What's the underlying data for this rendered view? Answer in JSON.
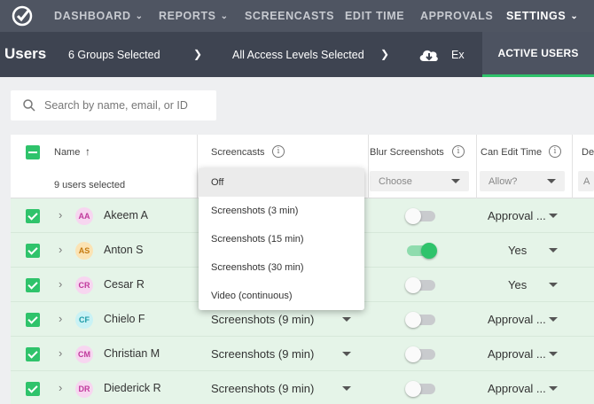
{
  "nav": {
    "items": [
      {
        "label": "DASHBOARD",
        "chevron": true
      },
      {
        "label": "REPORTS",
        "chevron": true
      },
      {
        "label": "SCREENCASTS",
        "chevron": false
      },
      {
        "label": "EDIT TIME",
        "chevron": false
      },
      {
        "label": "APPROVALS",
        "chevron": false
      },
      {
        "label": "SETTINGS",
        "chevron": true
      }
    ]
  },
  "subbar": {
    "title": "Users",
    "groups": "6 Groups Selected",
    "access": "All Access Levels Selected",
    "export": "Ex",
    "active_users": "ACTIVE USERS"
  },
  "search": {
    "placeholder": "Search by name, email, or ID"
  },
  "table": {
    "headers": {
      "name": "Name",
      "screencasts": "Screencasts",
      "blur": "Blur Screenshots",
      "edit": "Can Edit Time",
      "next": "De"
    },
    "users_selected": "9 users selected",
    "filters": {
      "blur": "Choose",
      "edit": "Allow?",
      "next": "A"
    },
    "rows": [
      {
        "initials": "AA",
        "name": "Akeem A",
        "screencasts": "",
        "blur": false,
        "edit": "Approval ...",
        "avatar_bg": "#f7d6f0",
        "avatar_fg": "#c0399c"
      },
      {
        "initials": "AS",
        "name": "Anton S",
        "screencasts": "",
        "blur": true,
        "edit": "Yes",
        "avatar_bg": "#fbe3b4",
        "avatar_fg": "#c47a10"
      },
      {
        "initials": "CR",
        "name": "Cesar R",
        "screencasts": "",
        "blur": false,
        "edit": "Yes",
        "avatar_bg": "#f7d6f0",
        "avatar_fg": "#c0399c"
      },
      {
        "initials": "CF",
        "name": "Chielo F",
        "screencasts": "Screenshots (9 min)",
        "blur": false,
        "edit": "Approval ...",
        "avatar_bg": "#c9f2f5",
        "avatar_fg": "#1c9aa6"
      },
      {
        "initials": "CM",
        "name": "Christian M",
        "screencasts": "Screenshots (9 min)",
        "blur": false,
        "edit": "Approval ...",
        "avatar_bg": "#f7d6f0",
        "avatar_fg": "#c0399c"
      },
      {
        "initials": "DR",
        "name": "Diederick R",
        "screencasts": "Screenshots (9 min)",
        "blur": false,
        "edit": "Approval ...",
        "avatar_bg": "#f7d6f0",
        "avatar_fg": "#c0399c"
      }
    ]
  },
  "dropdown": {
    "options": [
      "Off",
      "Screenshots (3 min)",
      "Screenshots (15 min)",
      "Screenshots (30 min)",
      "Video (continuous)"
    ],
    "selected": "Off"
  },
  "colors": {
    "accent": "#2fc36b",
    "nav_bg": "#4f5562",
    "subbar_bg": "#3e4451",
    "row_bg": "#e5f4e8"
  }
}
